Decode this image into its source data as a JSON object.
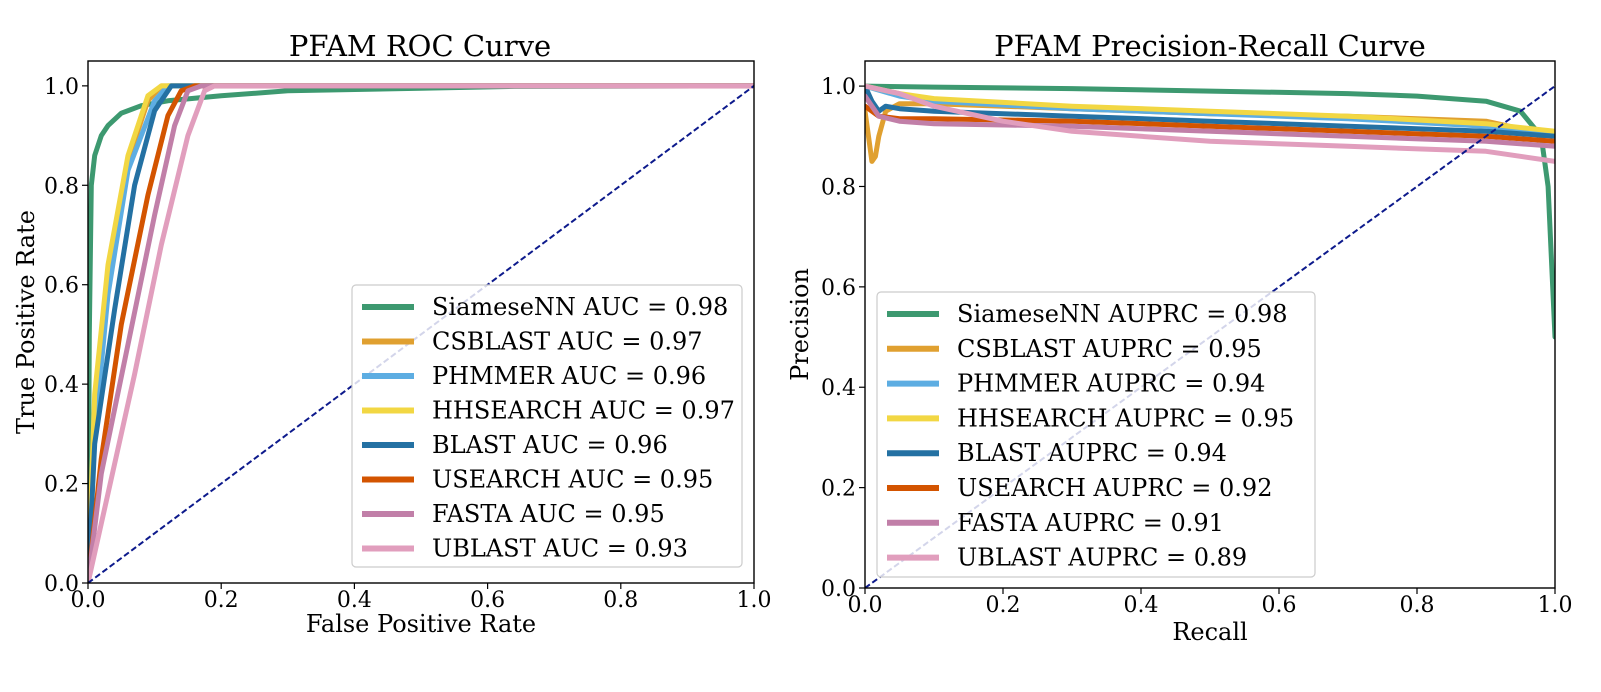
{
  "chart_data": [
    {
      "type": "line",
      "title": "PFAM ROC Curve",
      "xlabel": "False Positive Rate",
      "ylabel": "True Positive Rate",
      "xlim": [
        0,
        1
      ],
      "ylim": [
        0,
        1.05
      ],
      "xticks": [
        "0.0",
        "0.2",
        "0.4",
        "0.6",
        "0.8",
        "1.0"
      ],
      "yticks": [
        "0.0",
        "0.2",
        "0.4",
        "0.6",
        "0.8",
        "1.0"
      ],
      "legend_position": "lower-right",
      "grid": false,
      "reference_line": {
        "x": [
          0,
          1
        ],
        "y": [
          0,
          1
        ],
        "color": "#0d1a8c",
        "style": "dashed"
      },
      "series": [
        {
          "name": "SiameseNN AUC = 0.98",
          "color": "#3d9970",
          "x": [
            0,
            0.002,
            0.005,
            0.01,
            0.02,
            0.03,
            0.05,
            0.08,
            0.12,
            0.2,
            0.3,
            0.5,
            0.64,
            1.0
          ],
          "y": [
            0,
            0.5,
            0.8,
            0.86,
            0.9,
            0.92,
            0.945,
            0.96,
            0.97,
            0.98,
            0.99,
            0.995,
            0.999,
            1.0
          ]
        },
        {
          "name": "CSBLAST AUC = 0.97",
          "color": "#e0a030",
          "x": [
            0,
            0.01,
            0.03,
            0.06,
            0.09,
            0.11,
            0.13,
            1.0
          ],
          "y": [
            0,
            0.35,
            0.62,
            0.85,
            0.97,
            1.0,
            1.0,
            1.0
          ]
        },
        {
          "name": "PHMMER AUC = 0.96",
          "color": "#5dade2",
          "x": [
            0,
            0.01,
            0.03,
            0.06,
            0.1,
            0.12,
            0.14,
            1.0
          ],
          "y": [
            0,
            0.3,
            0.58,
            0.83,
            0.97,
            1.0,
            1.0,
            1.0
          ]
        },
        {
          "name": "HHSEARCH AUC = 0.97",
          "color": "#f2d743",
          "x": [
            0,
            0.01,
            0.03,
            0.06,
            0.09,
            0.11,
            0.13,
            1.0
          ],
          "y": [
            0,
            0.38,
            0.64,
            0.86,
            0.98,
            1.0,
            1.0,
            1.0
          ]
        },
        {
          "name": "BLAST AUC = 0.96",
          "color": "#2471a3",
          "x": [
            0,
            0.01,
            0.04,
            0.07,
            0.1,
            0.125,
            0.15,
            1.0
          ],
          "y": [
            0,
            0.28,
            0.55,
            0.8,
            0.95,
            1.0,
            1.0,
            1.0
          ]
        },
        {
          "name": "USEARCH AUC = 0.95",
          "color": "#d35400",
          "x": [
            0,
            0.02,
            0.05,
            0.09,
            0.12,
            0.14,
            0.16,
            1.0
          ],
          "y": [
            0,
            0.25,
            0.52,
            0.78,
            0.94,
            0.99,
            1.0,
            1.0
          ]
        },
        {
          "name": "FASTA AUC = 0.95",
          "color": "#c17fa8",
          "x": [
            0,
            0.02,
            0.06,
            0.1,
            0.13,
            0.15,
            0.17,
            1.0
          ],
          "y": [
            0,
            0.22,
            0.48,
            0.74,
            0.92,
            0.99,
            1.0,
            1.0
          ]
        },
        {
          "name": "UBLAST AUC = 0.93",
          "color": "#e19ebd",
          "x": [
            0,
            0.03,
            0.07,
            0.11,
            0.15,
            0.175,
            0.19,
            1.0
          ],
          "y": [
            0,
            0.18,
            0.42,
            0.68,
            0.9,
            0.99,
            1.0,
            1.0
          ]
        }
      ]
    },
    {
      "type": "line",
      "title": "PFAM Precision-Recall Curve",
      "xlabel": "Recall",
      "ylabel": "Precision",
      "xlim": [
        0,
        1
      ],
      "ylim": [
        0,
        1.05
      ],
      "xticks": [
        "0.0",
        "0.2",
        "0.4",
        "0.6",
        "0.8",
        "1.0"
      ],
      "yticks": [
        "0.0",
        "0.2",
        "0.4",
        "0.6",
        "0.8",
        "1.0"
      ],
      "legend_position": "lower-left",
      "grid": false,
      "reference_line": {
        "x": [
          0,
          1
        ],
        "y": [
          0,
          1
        ],
        "color": "#0d1a8c",
        "style": "dashed"
      },
      "series": [
        {
          "name": "SiameseNN AUPRC = 0.98",
          "color": "#3d9970",
          "x": [
            0,
            0.1,
            0.3,
            0.5,
            0.7,
            0.8,
            0.9,
            0.95,
            0.98,
            0.99,
            1.0
          ],
          "y": [
            1.0,
            0.998,
            0.995,
            0.99,
            0.985,
            0.98,
            0.97,
            0.95,
            0.9,
            0.8,
            0.5
          ]
        },
        {
          "name": "CSBLAST AUPRC = 0.95",
          "color": "#e0a030",
          "x": [
            0,
            0.005,
            0.01,
            0.015,
            0.02,
            0.03,
            0.05,
            0.1,
            0.3,
            0.5,
            0.7,
            0.9,
            1.0
          ],
          "y": [
            0.95,
            0.9,
            0.85,
            0.86,
            0.9,
            0.95,
            0.965,
            0.965,
            0.955,
            0.945,
            0.94,
            0.93,
            0.9
          ]
        },
        {
          "name": "PHMMER AUPRC = 0.94",
          "color": "#5dade2",
          "x": [
            0,
            0.05,
            0.1,
            0.3,
            0.5,
            0.7,
            0.9,
            1.0
          ],
          "y": [
            1.0,
            0.98,
            0.97,
            0.955,
            0.945,
            0.935,
            0.92,
            0.9
          ]
        },
        {
          "name": "HHSEARCH AUPRC = 0.95",
          "color": "#f2d743",
          "x": [
            0,
            0.05,
            0.1,
            0.3,
            0.5,
            0.7,
            0.9,
            1.0
          ],
          "y": [
            1.0,
            0.985,
            0.975,
            0.96,
            0.95,
            0.94,
            0.925,
            0.91
          ]
        },
        {
          "name": "BLAST AUPRC = 0.94",
          "color": "#2471a3",
          "x": [
            0,
            0.01,
            0.02,
            0.03,
            0.05,
            0.1,
            0.3,
            0.5,
            0.7,
            0.9,
            1.0
          ],
          "y": [
            1.0,
            0.97,
            0.95,
            0.96,
            0.955,
            0.95,
            0.94,
            0.93,
            0.92,
            0.91,
            0.9
          ]
        },
        {
          "name": "USEARCH AUPRC = 0.92",
          "color": "#d35400",
          "x": [
            0,
            0.02,
            0.05,
            0.1,
            0.3,
            0.5,
            0.7,
            0.9,
            1.0
          ],
          "y": [
            0.96,
            0.94,
            0.935,
            0.935,
            0.93,
            0.92,
            0.91,
            0.9,
            0.89
          ]
        },
        {
          "name": "FASTA AUPRC = 0.91",
          "color": "#c17fa8",
          "x": [
            0,
            0.02,
            0.05,
            0.1,
            0.3,
            0.5,
            0.7,
            0.9,
            1.0
          ],
          "y": [
            0.98,
            0.94,
            0.93,
            0.925,
            0.92,
            0.91,
            0.9,
            0.89,
            0.88
          ]
        },
        {
          "name": "UBLAST AUPRC = 0.89",
          "color": "#e19ebd",
          "x": [
            0,
            0.05,
            0.1,
            0.2,
            0.3,
            0.5,
            0.7,
            0.9,
            1.0
          ],
          "y": [
            1.0,
            0.985,
            0.96,
            0.93,
            0.91,
            0.89,
            0.88,
            0.87,
            0.85
          ]
        }
      ]
    }
  ]
}
